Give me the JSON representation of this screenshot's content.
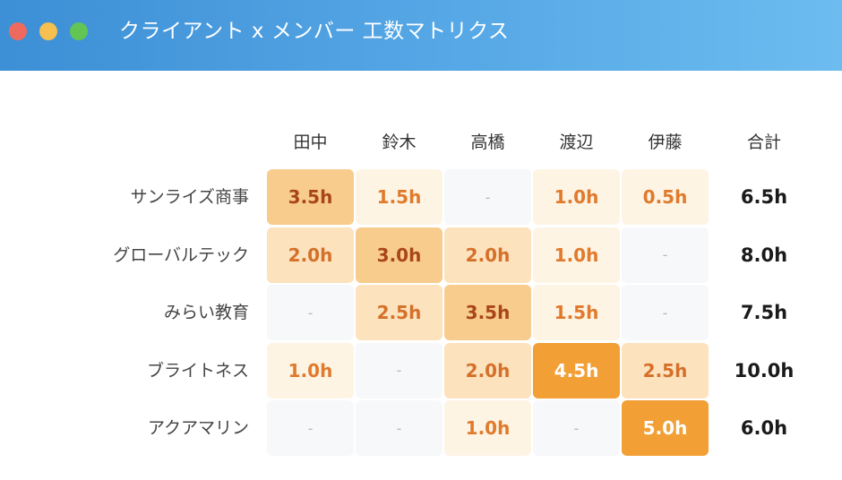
{
  "window": {
    "title": "クライアント x メンバー 工数マトリクス"
  },
  "matrix": {
    "columns": [
      "田中",
      "鈴木",
      "高橋",
      "渡辺",
      "伊藤"
    ],
    "total_header": "合計",
    "rows": [
      {
        "client": "サンライズ商事",
        "cells": [
          {
            "text": "3.5h",
            "level": 3
          },
          {
            "text": "1.5h",
            "level": 1
          },
          {
            "text": "-",
            "level": 0
          },
          {
            "text": "1.0h",
            "level": 1
          },
          {
            "text": "0.5h",
            "level": 1
          }
        ],
        "total": "6.5h"
      },
      {
        "client": "グローバルテック",
        "cells": [
          {
            "text": "2.0h",
            "level": 2
          },
          {
            "text": "3.0h",
            "level": 3
          },
          {
            "text": "2.0h",
            "level": 2
          },
          {
            "text": "1.0h",
            "level": 1
          },
          {
            "text": "-",
            "level": 0
          }
        ],
        "total": "8.0h"
      },
      {
        "client": "みらい教育",
        "cells": [
          {
            "text": "-",
            "level": 0
          },
          {
            "text": "2.5h",
            "level": 2
          },
          {
            "text": "3.5h",
            "level": 3
          },
          {
            "text": "1.5h",
            "level": 1
          },
          {
            "text": "-",
            "level": 0
          }
        ],
        "total": "7.5h"
      },
      {
        "client": "ブライトネス",
        "cells": [
          {
            "text": "1.0h",
            "level": 1
          },
          {
            "text": "-",
            "level": 0
          },
          {
            "text": "2.0h",
            "level": 2
          },
          {
            "text": "4.5h",
            "level": 4
          },
          {
            "text": "2.5h",
            "level": 2
          }
        ],
        "total": "10.0h"
      },
      {
        "client": "アクアマリン",
        "cells": [
          {
            "text": "-",
            "level": 0
          },
          {
            "text": "-",
            "level": 0
          },
          {
            "text": "1.0h",
            "level": 1
          },
          {
            "text": "-",
            "level": 0
          },
          {
            "text": "5.0h",
            "level": 4
          }
        ],
        "total": "6.0h"
      }
    ]
  },
  "colors": {
    "level_bg": [
      "#f7f8fa",
      "#fef4e4",
      "#fce2bd",
      "#f8cc8c",
      "#f29f36"
    ],
    "level_fg": [
      "#b8b8b8",
      "#e07a2c",
      "#d5702a",
      "#a8461a",
      "#ffffff"
    ],
    "titlebar_start": "#3d8fd6",
    "titlebar_end": "#6cbcf0"
  }
}
